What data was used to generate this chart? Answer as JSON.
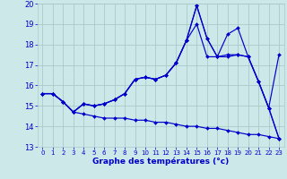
{
  "xlabel": "Graphe des températures (°c)",
  "xlim": [
    -0.5,
    23.5
  ],
  "ylim": [
    13,
    20
  ],
  "yticks": [
    13,
    14,
    15,
    16,
    17,
    18,
    19,
    20
  ],
  "xticks": [
    0,
    1,
    2,
    3,
    4,
    5,
    6,
    7,
    8,
    9,
    10,
    11,
    12,
    13,
    14,
    15,
    16,
    17,
    18,
    19,
    20,
    21,
    22,
    23
  ],
  "background_color": "#cce8e8",
  "grid_color": "#aacaca",
  "line_color": "#0000cc",
  "series": [
    {
      "x": [
        0,
        1,
        2,
        3,
        4,
        5,
        6,
        7,
        8,
        9,
        10,
        11,
        12,
        13,
        14,
        15,
        16,
        17,
        18,
        19,
        20,
        21,
        22,
        23
      ],
      "y": [
        15.6,
        15.6,
        15.2,
        14.7,
        15.1,
        15.0,
        15.1,
        15.3,
        15.6,
        16.3,
        16.4,
        16.3,
        16.5,
        17.1,
        18.2,
        19.0,
        17.4,
        17.4,
        17.5,
        17.5,
        17.4,
        16.2,
        14.9,
        17.5
      ]
    },
    {
      "x": [
        0,
        1,
        2,
        3,
        4,
        5,
        6,
        7,
        8,
        9,
        10,
        11,
        12,
        13,
        14,
        15,
        16,
        17,
        18,
        19,
        20,
        21,
        22,
        23
      ],
      "y": [
        15.6,
        15.6,
        15.2,
        14.7,
        15.1,
        15.0,
        15.1,
        15.3,
        15.6,
        16.3,
        16.4,
        16.3,
        16.5,
        17.1,
        18.2,
        19.9,
        18.3,
        17.4,
        17.4,
        17.5,
        17.4,
        16.2,
        14.9,
        13.4
      ]
    },
    {
      "x": [
        0,
        1,
        2,
        3,
        4,
        5,
        6,
        7,
        8,
        9,
        10,
        11,
        12,
        13,
        14,
        15,
        16,
        17,
        18,
        19,
        20,
        21,
        22,
        23
      ],
      "y": [
        15.6,
        15.6,
        15.2,
        14.7,
        15.1,
        15.0,
        15.1,
        15.3,
        15.6,
        16.3,
        16.4,
        16.3,
        16.5,
        17.1,
        18.2,
        19.9,
        18.3,
        17.4,
        18.5,
        18.8,
        17.4,
        16.2,
        14.9,
        13.4
      ]
    },
    {
      "x": [
        0,
        1,
        2,
        3,
        4,
        5,
        6,
        7,
        8,
        9,
        10,
        11,
        12,
        13,
        14,
        15,
        16,
        17,
        18,
        19,
        20,
        21,
        22,
        23
      ],
      "y": [
        15.6,
        15.6,
        15.2,
        14.7,
        14.6,
        14.5,
        14.4,
        14.4,
        14.4,
        14.3,
        14.3,
        14.2,
        14.2,
        14.1,
        14.0,
        14.0,
        13.9,
        13.9,
        13.8,
        13.7,
        13.6,
        13.6,
        13.5,
        13.4
      ]
    }
  ]
}
